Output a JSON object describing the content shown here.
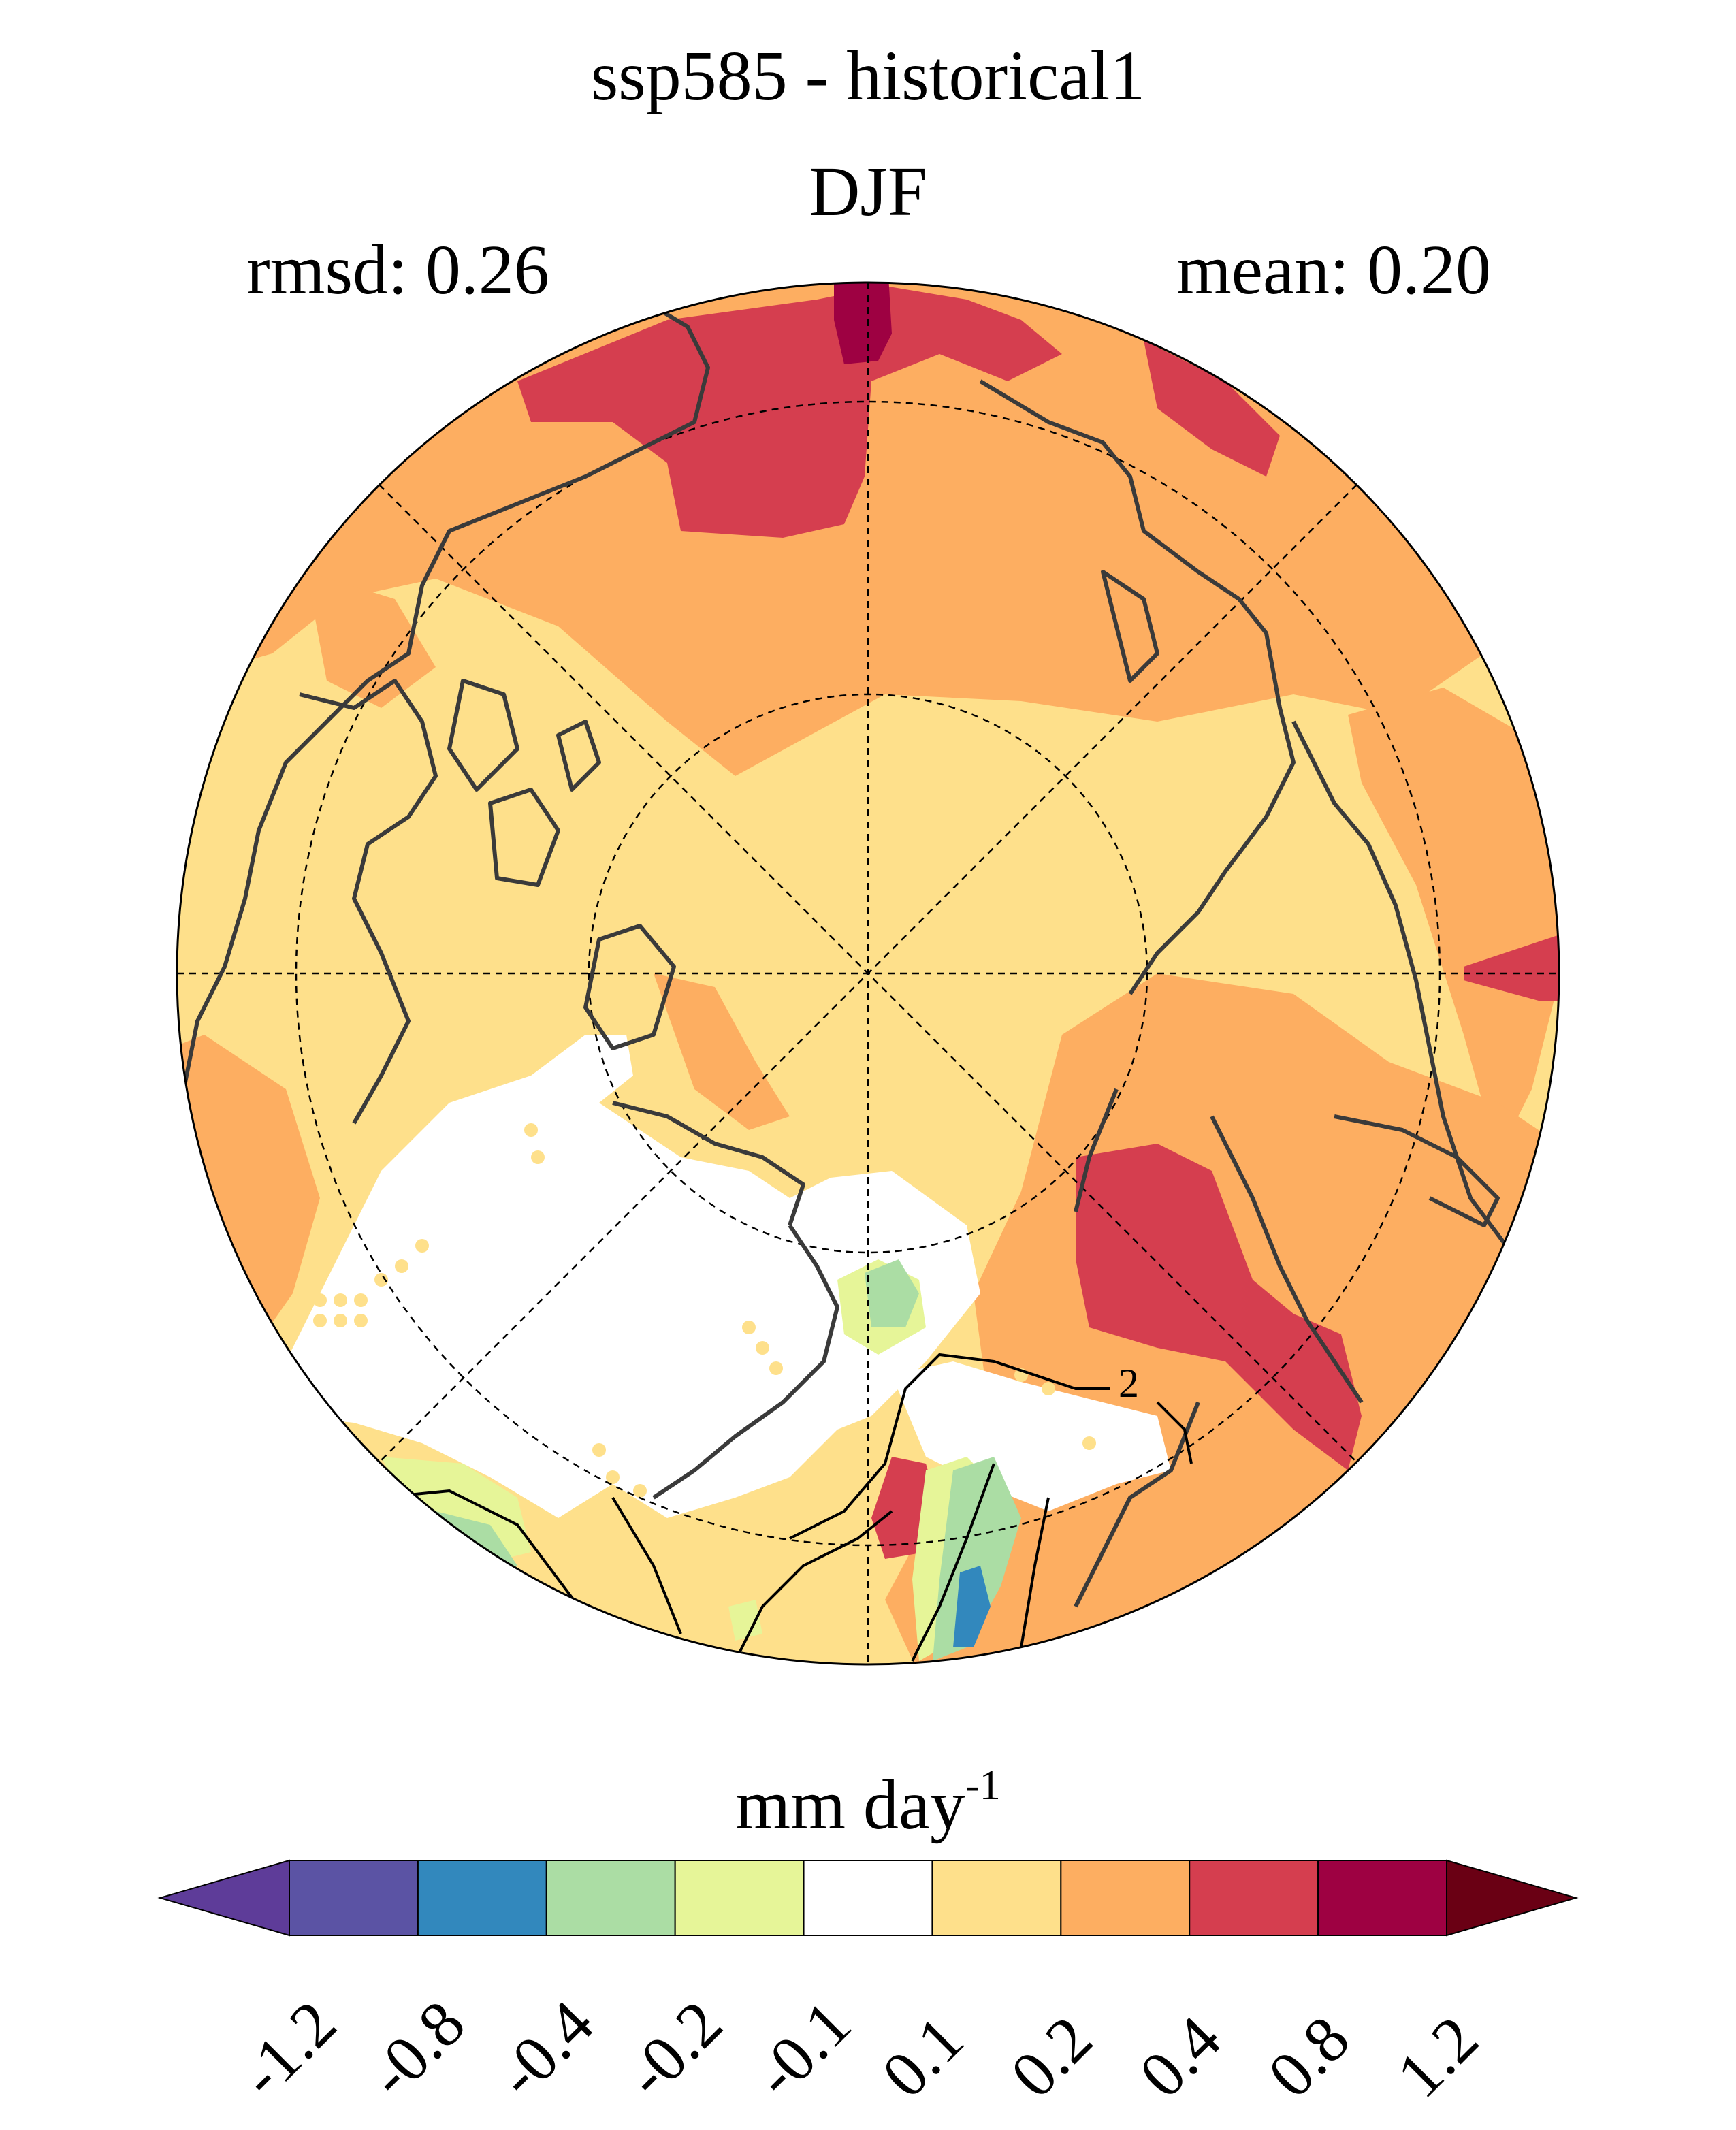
{
  "title": "ssp585 - historical1",
  "season": "DJF",
  "stats": {
    "rmsd_label": "rmsd: 0.26",
    "mean_label": "mean: 0.20"
  },
  "map": {
    "projection": "north polar stereographic",
    "contour_label": "2",
    "colors": {
      "land_outline": "#3a3a3a",
      "grid": "#000000",
      "background": "#ffffff"
    }
  },
  "colorbar": {
    "units_base": "mm day",
    "units_exp": "-1",
    "levels": [
      "-1.2",
      "-0.8",
      "-0.4",
      "-0.2",
      "-0.1",
      "0.1",
      "0.2",
      "0.4",
      "0.8",
      "1.2"
    ],
    "colors": [
      "#5e3c99",
      "#5b53a4",
      "#3288bd",
      "#abdda4",
      "#e6f598",
      "#ffffff",
      "#fee08b",
      "#fdae61",
      "#d53e4f",
      "#9e0142",
      "#6a0014"
    ]
  }
}
